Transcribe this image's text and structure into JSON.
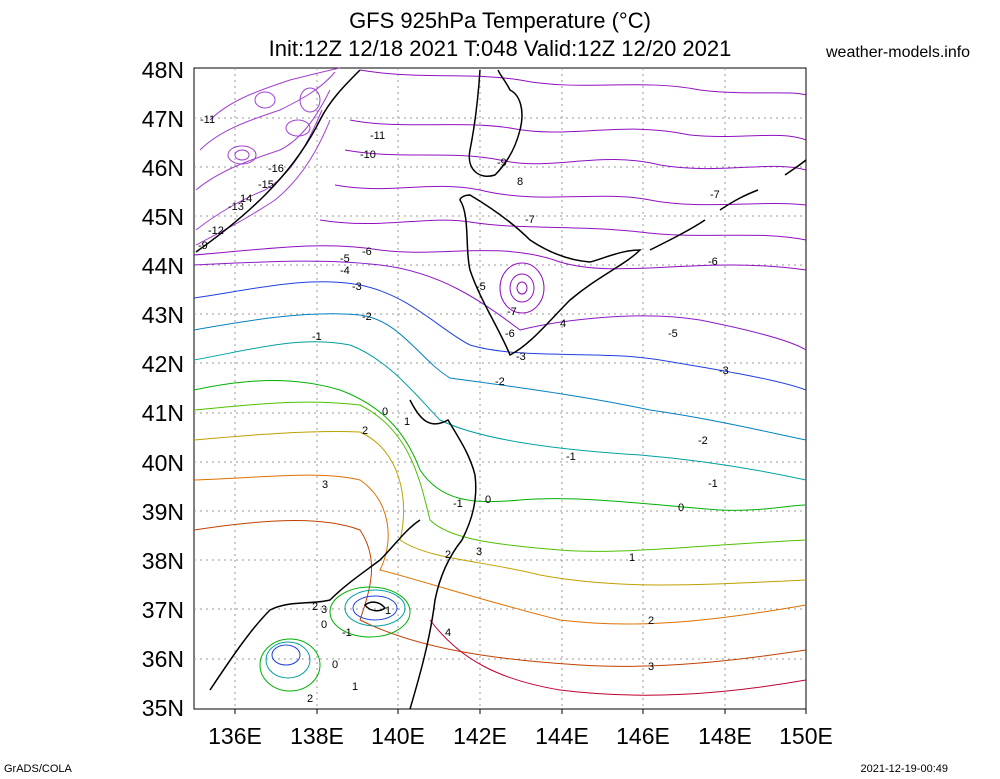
{
  "map": {
    "title_line1": "GFS 925hPa Temperature (°C)",
    "title_line2": "Init:12Z 12/18 2021 T:048 Valid:12Z 12/20 2021",
    "site": "weather-models.info",
    "footer_left": "GrADS/COLA",
    "footer_right": "2021-12-19-00:49",
    "lat_labels": [
      "48N",
      "47N",
      "46N",
      "45N",
      "44N",
      "43N",
      "42N",
      "41N",
      "40N",
      "39N",
      "38N",
      "37N",
      "36N",
      "35N"
    ],
    "lon_labels": [
      "136E",
      "138E",
      "140E",
      "142E",
      "144E",
      "146E",
      "148E",
      "150E"
    ],
    "contour_labels": [
      "-11",
      "-11",
      "-10",
      "-9",
      "8",
      "-16",
      "-15",
      "14",
      "-13",
      "-12",
      "-9",
      "-7",
      "-7",
      "-6",
      "-6",
      "-5",
      "-4",
      "-5",
      "-3",
      "-2",
      "-7",
      "-6",
      "-1",
      "4",
      "-5",
      "-3",
      "-2",
      "-3",
      "0",
      "2",
      "1",
      "-2",
      "-1",
      "3",
      "-1",
      "0",
      "-1",
      "0",
      "1",
      "2",
      "3",
      "2",
      "4",
      "3",
      "2",
      "0",
      "-1",
      "0",
      "1",
      "2",
      "1",
      "3"
    ],
    "colors": {
      "cold": "#8000c0",
      "cool": "#0040ff",
      "mid": "#00a0a0",
      "neutral": "#00b000",
      "warm": "#d08000",
      "hot": "#c00020"
    }
  }
}
